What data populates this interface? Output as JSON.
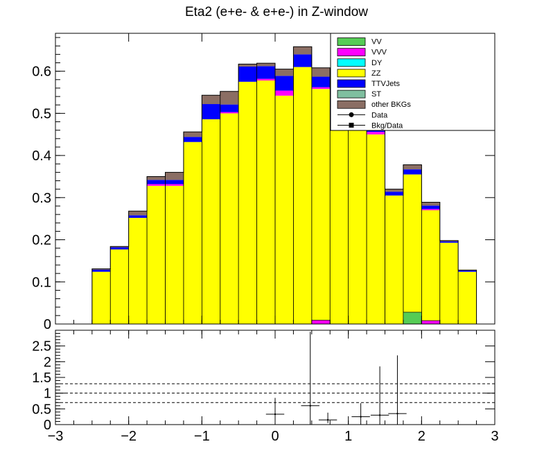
{
  "chart_data": {
    "type": "bar",
    "title": "Eta2 (e+e- & e+e-) in Z-window",
    "x": {
      "range": [
        -3,
        3
      ],
      "ticks": [
        -3,
        -2,
        -1,
        0,
        1,
        2,
        3
      ],
      "tick_labels": [
        "−3",
        "−2",
        "−1",
        "0",
        "1",
        "2",
        "3"
      ]
    },
    "bin_edges": [
      -3.0,
      -2.75,
      -2.5,
      -2.25,
      -2.0,
      -1.75,
      -1.5,
      -1.25,
      -1.0,
      -0.75,
      -0.5,
      -0.25,
      0.0,
      0.25,
      0.5,
      0.75,
      1.0,
      1.25,
      1.5,
      1.75,
      2.0,
      2.25,
      2.5,
      2.75,
      3.0
    ],
    "main_panel": {
      "ylim": [
        0,
        0.69
      ],
      "y_ticks": [
        0,
        0.1,
        0.2,
        0.3,
        0.4,
        0.5,
        0.6
      ],
      "y_tick_labels": [
        "0",
        "0.1",
        "0.2",
        "0.3",
        "0.4",
        "0.5",
        "0.6"
      ],
      "stack": [
        {
          "name": "ZZ",
          "color": "#ffff00",
          "values": [
            0,
            0,
            0.124,
            0.177,
            0.252,
            0.328,
            0.328,
            0.432,
            0.486,
            0.5,
            0.575,
            0.578,
            0.542,
            0.61,
            0.558,
            0.515,
            0.497,
            0.45,
            0.305,
            0.355,
            0.27,
            0.193,
            0.124,
            0,
            0
          ]
        },
        {
          "name": "VVV",
          "color": "#ff00ff",
          "values": [
            0,
            0,
            0,
            0,
            0,
            0.004,
            0.004,
            0,
            0,
            0.003,
            0,
            0.004,
            0.012,
            0,
            0.004,
            0.01,
            0.008,
            0.006,
            0,
            0,
            0.003,
            0,
            0,
            0,
            0
          ]
        },
        {
          "name": "TTVJets",
          "color": "#0000ff",
          "values": [
            0,
            0,
            0.005,
            0.005,
            0.006,
            0.01,
            0.01,
            0.012,
            0.036,
            0.018,
            0.036,
            0.03,
            0.035,
            0.03,
            0.025,
            0.03,
            0.025,
            0.02,
            0.009,
            0.012,
            0.008,
            0.003,
            0.003,
            0,
            0
          ]
        },
        {
          "name": "other BKGs",
          "color": "#8b6e64",
          "values": [
            0,
            0,
            0.002,
            0.002,
            0.01,
            0.008,
            0.018,
            0.012,
            0.021,
            0.031,
            0.006,
            0.007,
            0.016,
            0.018,
            0.021,
            0.008,
            0.012,
            0.01,
            0.006,
            0.011,
            0.008,
            0.002,
            0.001,
            0,
            0
          ]
        }
      ],
      "overlays": [
        {
          "name": "VVV",
          "color": "#ff00ff",
          "bin_index": 14,
          "value": 0.009
        },
        {
          "name": "VV",
          "color": "#55cc55",
          "bin_index": 19,
          "value": 0.028
        },
        {
          "name": "VVV",
          "color": "#ff00ff",
          "bin_index": 20,
          "value": 0.008
        }
      ]
    },
    "ratio_panel": {
      "ylim": [
        0,
        3
      ],
      "y_ticks": [
        0,
        0.5,
        1,
        1.5,
        2,
        2.5
      ],
      "y_tick_labels": [
        "0",
        "0.5",
        "1",
        "1.5",
        "2",
        "2.5"
      ],
      "reference_lines": [
        0.7,
        1.0,
        1.3
      ],
      "points": [
        {
          "x": 0.0,
          "y": 0.33,
          "xerr": 0.125,
          "ylow": 0.0,
          "yhigh": 0.85
        },
        {
          "x": 0.48,
          "y": 0.6,
          "xerr": 0.125,
          "ylow": 0.0,
          "yhigh": 2.95
        },
        {
          "x": 0.72,
          "y": 0.15,
          "xerr": 0.125,
          "ylow": 0.05,
          "yhigh": 0.38
        },
        {
          "x": 1.17,
          "y": 0.25,
          "xerr": 0.125,
          "ylow": 0.0,
          "yhigh": 0.68
        },
        {
          "x": 1.43,
          "y": 0.3,
          "xerr": 0.125,
          "ylow": 0.0,
          "yhigh": 1.85
        },
        {
          "x": 1.67,
          "y": 0.35,
          "xerr": 0.125,
          "ylow": 0.0,
          "yhigh": 2.2
        }
      ]
    },
    "legend": {
      "placement": "top-right",
      "entries": [
        {
          "label": "VV",
          "kind": "box",
          "color": "#55cc55"
        },
        {
          "label": "VVV",
          "kind": "box",
          "color": "#ff00ff"
        },
        {
          "label": "DY",
          "kind": "box",
          "color": "#00ffff"
        },
        {
          "label": "ZZ",
          "kind": "box",
          "color": "#ffff00"
        },
        {
          "label": "TTVJets",
          "kind": "box",
          "color": "#0000ff"
        },
        {
          "label": "ST",
          "kind": "box",
          "color": "#7fbf9f"
        },
        {
          "label": "other BKGs",
          "kind": "box",
          "color": "#8b6e64"
        },
        {
          "label": "Data",
          "kind": "circle-marker",
          "color": "#000000"
        },
        {
          "label": "Bkg/Data",
          "kind": "square-marker",
          "color": "#000000"
        }
      ]
    }
  }
}
